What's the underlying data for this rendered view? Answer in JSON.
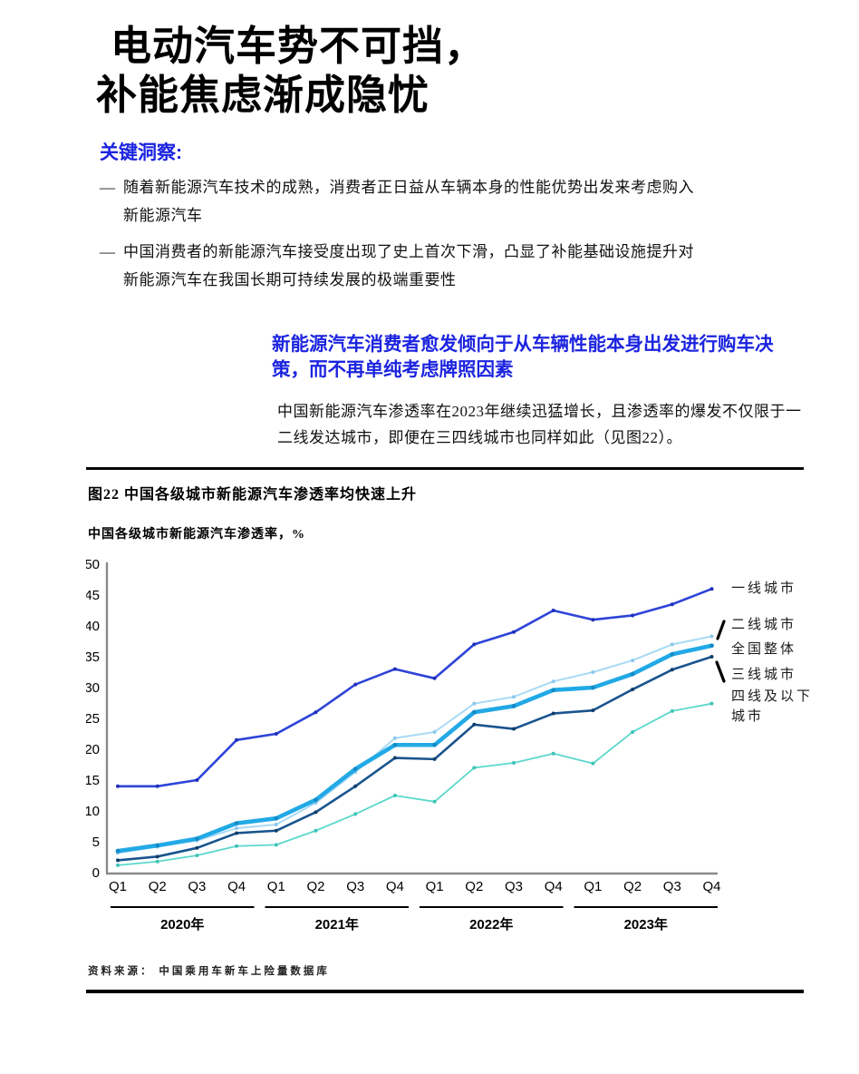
{
  "page": {
    "title_line1": "电动汽车势不可挡，",
    "title_line2": "补能焦虑渐成隐忧"
  },
  "insights": {
    "heading": "关键洞察:",
    "bullets": [
      {
        "dash": "—",
        "text": "随着新能源汽车技术的成熟，消费者正日益从车辆本身的性能优势出发来考虑购入新能源汽车"
      },
      {
        "dash": "—",
        "text": "中国消费者的新能源汽车接受度出现了史上首次下滑，凸显了补能基础设施提升对新能源汽车在我国长期可持续发展的极端重要性"
      }
    ]
  },
  "section": {
    "heading": "新能源汽车消费者愈发倾向于从车辆性能本身出发进行购车决策，而不再单纯考虑牌照因素",
    "body": "中国新能源汽车渗透率在2023年继续迅猛增长，且渗透率的爆发不仅限于一二线发达城市，即便在三四线城市也同样如此（见图22）。"
  },
  "figure": {
    "title": "图22  中国各级城市新能源汽车渗透率均快速上升",
    "subtitle": "中国各级城市新能源汽车渗透率，%",
    "source": "资料来源：  中国乘用车新车上险量数据库"
  },
  "chart_data": {
    "type": "line",
    "title": "中国各级城市新能源汽车渗透率均快速上升",
    "ylabel": "中国各级城市新能源汽车渗透率，%",
    "ylim": [
      0,
      50
    ],
    "ytick_step": 5,
    "grid": false,
    "legend_position": "right",
    "x": [
      "Q1",
      "Q2",
      "Q3",
      "Q4",
      "Q1",
      "Q2",
      "Q3",
      "Q4",
      "Q1",
      "Q2",
      "Q3",
      "Q4",
      "Q1",
      "Q2",
      "Q3",
      "Q4"
    ],
    "year_groups": [
      {
        "label": "2020年",
        "quarters": [
          0,
          3
        ]
      },
      {
        "label": "2021年",
        "quarters": [
          4,
          7
        ]
      },
      {
        "label": "2022年",
        "quarters": [
          8,
          11
        ]
      },
      {
        "label": "2023年",
        "quarters": [
          12,
          15
        ]
      }
    ],
    "series": [
      {
        "name": "一线城市",
        "color": "#2E44D8",
        "marker_color": "#1F2FB8",
        "width": 2.6,
        "values": [
          14,
          14,
          15,
          21.5,
          22.5,
          26,
          30.5,
          33,
          31.5,
          37,
          39,
          42.5,
          41,
          41.7,
          43.5,
          46
        ]
      },
      {
        "name": "二线城市",
        "color": "#A8DAF5",
        "marker_color": "#8CC9EE",
        "width": 2,
        "values": [
          3.2,
          4.2,
          5.2,
          7.2,
          7.8,
          11.3,
          16.3,
          21.8,
          22.8,
          27.4,
          28.5,
          31,
          32.5,
          34.4,
          37,
          38.3
        ]
      },
      {
        "name": "全国整体",
        "color": "#22A9E6",
        "marker_color": "#158BC6",
        "width": 4.6,
        "values": [
          3.5,
          4.4,
          5.5,
          8,
          8.8,
          11.8,
          16.8,
          20.7,
          20.7,
          26,
          27,
          29.6,
          30,
          32.2,
          35.4,
          36.8
        ]
      },
      {
        "name": "三线城市",
        "color": "#1A548E",
        "marker_color": "#123E6B",
        "width": 2.6,
        "values": [
          2,
          2.6,
          4,
          6.4,
          6.8,
          9.8,
          14,
          18.6,
          18.4,
          24,
          23.3,
          25.8,
          26.3,
          29.7,
          32.9,
          35
        ]
      },
      {
        "name": "四线及以下城市",
        "color": "#5CD8CC",
        "marker_color": "#3EC4B6",
        "width": 1.8,
        "values": [
          1.2,
          1.8,
          2.8,
          4.3,
          4.5,
          6.8,
          9.5,
          12.5,
          11.5,
          17,
          17.8,
          19.3,
          17.7,
          22.8,
          26.2,
          27.4
        ]
      }
    ]
  }
}
